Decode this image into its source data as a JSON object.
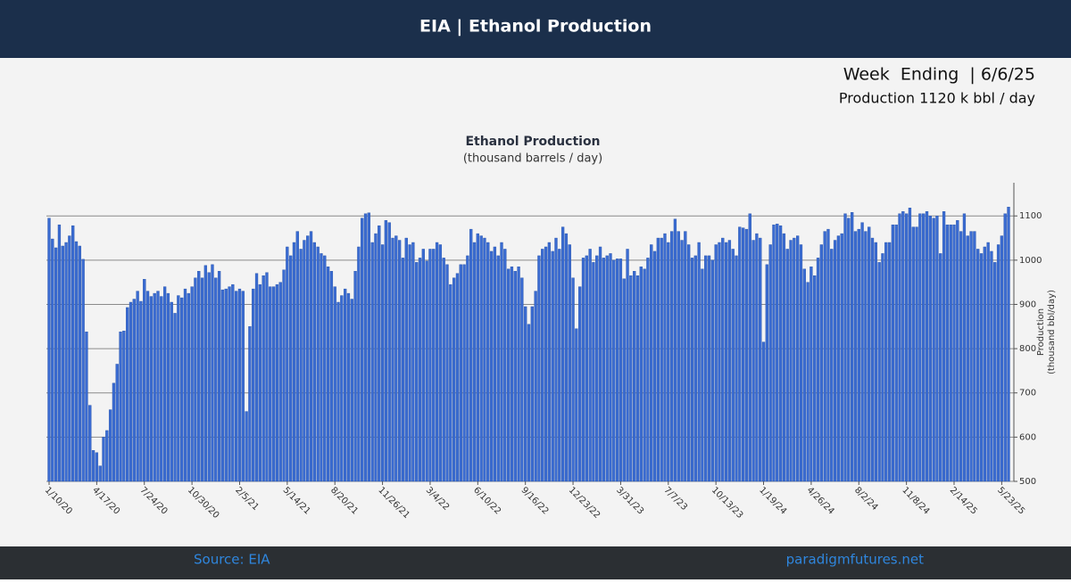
{
  "header": {
    "title": "EIA | Ethanol Production"
  },
  "info": {
    "week_ending": "Week  Ending  | 6/6/25",
    "production": "Production 1120 k bbl / day"
  },
  "chart_data": {
    "type": "bar",
    "title": "Ethanol Production",
    "subtitle": "(thousand barrels / day)",
    "ylabel": [
      "Production",
      "(thousand bbl/day)"
    ],
    "color": "#3a6bd1",
    "grid": true,
    "y_axis_side": "right",
    "ylim": [
      500,
      1175
    ],
    "yticks": [
      500,
      600,
      700,
      800,
      900,
      1000,
      1100
    ],
    "categories": [
      "1/10/20",
      null,
      null,
      null,
      null,
      null,
      null,
      null,
      null,
      null,
      null,
      null,
      null,
      null,
      "4/17/20",
      null,
      null,
      null,
      null,
      null,
      null,
      null,
      null,
      null,
      null,
      null,
      null,
      null,
      "7/24/20",
      null,
      null,
      null,
      null,
      null,
      null,
      null,
      null,
      null,
      null,
      null,
      null,
      null,
      "10/30/20",
      null,
      null,
      null,
      null,
      null,
      null,
      null,
      null,
      null,
      null,
      null,
      null,
      null,
      "2/5/21",
      null,
      null,
      null,
      null,
      null,
      null,
      null,
      null,
      null,
      null,
      null,
      null,
      null,
      "5/14/21",
      null,
      null,
      null,
      null,
      null,
      null,
      null,
      null,
      null,
      null,
      null,
      null,
      null,
      "8/20/21",
      null,
      null,
      null,
      null,
      null,
      null,
      null,
      null,
      null,
      null,
      null,
      null,
      null,
      "11/26/21",
      null,
      null,
      null,
      null,
      null,
      null,
      null,
      null,
      null,
      null,
      null,
      null,
      null,
      "3/4/22",
      null,
      null,
      null,
      null,
      null,
      null,
      null,
      null,
      null,
      null,
      null,
      null,
      null,
      "6/10/22",
      null,
      null,
      null,
      null,
      null,
      null,
      null,
      null,
      null,
      null,
      null,
      null,
      null,
      "9/16/22",
      null,
      null,
      null,
      null,
      null,
      null,
      null,
      null,
      null,
      null,
      null,
      null,
      null,
      "12/23/22",
      null,
      null,
      null,
      null,
      null,
      null,
      null,
      null,
      null,
      null,
      null,
      null,
      null,
      "3/31/23",
      null,
      null,
      null,
      null,
      null,
      null,
      null,
      null,
      null,
      null,
      null,
      null,
      null,
      "7/7/23",
      null,
      null,
      null,
      null,
      null,
      null,
      null,
      null,
      null,
      null,
      null,
      null,
      null,
      "10/13/23",
      null,
      null,
      null,
      null,
      null,
      null,
      null,
      null,
      null,
      null,
      null,
      null,
      null,
      "1/19/24",
      null,
      null,
      null,
      null,
      null,
      null,
      null,
      null,
      null,
      null,
      null,
      null,
      null,
      "4/26/24",
      null,
      null,
      null,
      null,
      null,
      null,
      null,
      null,
      null,
      null,
      null,
      null,
      null,
      "8/2/24",
      null,
      null,
      null,
      null,
      null,
      null,
      null,
      null,
      null,
      null,
      null,
      null,
      null,
      "11/8/24",
      null,
      null,
      null,
      null,
      null,
      null,
      null,
      null,
      null,
      null,
      null,
      null,
      null,
      "2/14/25",
      null,
      null,
      null,
      null,
      null,
      null,
      null,
      null,
      null,
      null,
      null,
      null,
      null,
      "5/23/25",
      null,
      null
    ],
    "values": [
      1095,
      1048,
      1028,
      1080,
      1032,
      1040,
      1055,
      1078,
      1042,
      1032,
      1002,
      838,
      672,
      570,
      565,
      535,
      600,
      615,
      662,
      722,
      765,
      838,
      840,
      893,
      905,
      912,
      930,
      907,
      957,
      930,
      918,
      925,
      930,
      918,
      940,
      925,
      905,
      880,
      920,
      915,
      935,
      925,
      940,
      960,
      975,
      960,
      988,
      972,
      990,
      960,
      975,
      933,
      935,
      940,
      945,
      930,
      935,
      930,
      658,
      850,
      935,
      970,
      945,
      965,
      972,
      940,
      940,
      945,
      950,
      978,
      1030,
      1010,
      1040,
      1065,
      1025,
      1045,
      1055,
      1065,
      1040,
      1030,
      1015,
      1010,
      985,
      975,
      940,
      905,
      920,
      935,
      925,
      912,
      975,
      1030,
      1095,
      1105,
      1107,
      1040,
      1060,
      1078,
      1035,
      1090,
      1085,
      1050,
      1055,
      1045,
      1005,
      1050,
      1035,
      1040,
      995,
      1005,
      1025,
      998,
      1025,
      1025,
      1040,
      1035,
      1005,
      990,
      945,
      960,
      970,
      990,
      990,
      1010,
      1070,
      1040,
      1060,
      1055,
      1050,
      1040,
      1020,
      1030,
      1010,
      1040,
      1025,
      980,
      985,
      975,
      985,
      960,
      895,
      855,
      895,
      930,
      1010,
      1025,
      1030,
      1040,
      1020,
      1050,
      1025,
      1075,
      1060,
      1035,
      960,
      845,
      940,
      1005,
      1010,
      1025,
      995,
      1010,
      1030,
      1005,
      1010,
      1015,
      1000,
      1003,
      1003,
      958,
      1025,
      965,
      975,
      965,
      985,
      980,
      1005,
      1035,
      1020,
      1050,
      1050,
      1060,
      1040,
      1065,
      1093,
      1065,
      1045,
      1065,
      1035,
      1005,
      1010,
      1040,
      980,
      1010,
      1010,
      1000,
      1035,
      1040,
      1050,
      1040,
      1045,
      1025,
      1010,
      1075,
      1073,
      1070,
      1105,
      1045,
      1060,
      1050,
      815,
      990,
      1035,
      1080,
      1082,
      1078,
      1060,
      1025,
      1045,
      1050,
      1055,
      1035,
      980,
      950,
      985,
      965,
      1005,
      1035,
      1065,
      1070,
      1025,
      1045,
      1055,
      1060,
      1105,
      1095,
      1108,
      1065,
      1070,
      1085,
      1065,
      1075,
      1050,
      1040,
      995,
      1015,
      1040,
      1040,
      1080,
      1080,
      1105,
      1110,
      1105,
      1118,
      1075,
      1075,
      1105,
      1105,
      1110,
      1100,
      1095,
      1100,
      1015,
      1110,
      1080,
      1080,
      1080,
      1090,
      1065,
      1105,
      1055,
      1065,
      1065,
      1025,
      1015,
      1030,
      1040,
      1020,
      995,
      1035,
      1055,
      1105,
      1120
    ]
  },
  "footer": {
    "source": "Source: EIA",
    "site": "paradigmfutures.net"
  }
}
